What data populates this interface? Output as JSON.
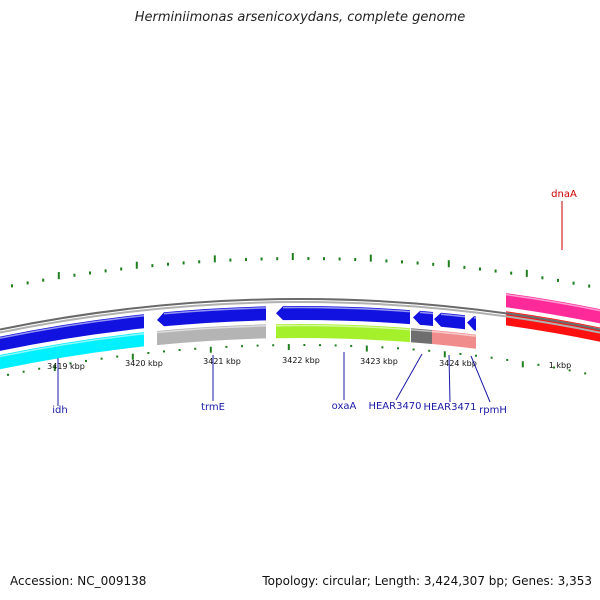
{
  "title": "Herminiimonas arsenicoxydans, complete genome",
  "footer": {
    "accession": "Accession: NC_009138",
    "summary": "Topology: circular; Length: 3,424,307 bp; Genes: 3,353"
  },
  "colors": {
    "backbone": "#888888",
    "tick": "#1f7f1f",
    "label_blue": "#1a1aa8",
    "label_red": "#cc0000",
    "blue": "#1212e0",
    "cyan": "#00f0ff",
    "gray": "#b4b4b4",
    "green": "#a4f02a",
    "darkgray": "#6e6e6e",
    "salmon": "#f08c8c",
    "pink": "#ff2a9a",
    "red": "#ff1010"
  },
  "kbp_labels": [
    {
      "text": "3419 kbp"
    },
    {
      "text": "3420 kbp"
    },
    {
      "text": "3421 kbp"
    },
    {
      "text": "3422 kbp"
    },
    {
      "text": "3423 kbp"
    },
    {
      "text": "3424 kbp"
    },
    {
      "text": "1 kbp"
    }
  ],
  "genes": [
    {
      "name": "idh",
      "strand": "forward",
      "color": "blue"
    },
    {
      "name": "",
      "strand": "reverse",
      "color": "cyan"
    },
    {
      "name": "trmE",
      "strand": "forward",
      "color": "blue"
    },
    {
      "name": "",
      "strand": "reverse",
      "color": "gray"
    },
    {
      "name": "oxaA",
      "strand": "forward",
      "color": "blue"
    },
    {
      "name": "",
      "strand": "reverse",
      "color": "green"
    },
    {
      "name": "HEAR3470",
      "strand": "forward",
      "color": "blue"
    },
    {
      "name": "",
      "strand": "reverse",
      "color": "darkgray"
    },
    {
      "name": "HEAR3471",
      "strand": "forward",
      "color": "blue"
    },
    {
      "name": "",
      "strand": "reverse",
      "color": "salmon"
    },
    {
      "name": "rpmH",
      "strand": "forward",
      "color": "blue"
    },
    {
      "name": "dnaA",
      "strand": "forward",
      "color": "pink"
    },
    {
      "name": "",
      "strand": "reverse",
      "color": "red"
    }
  ]
}
